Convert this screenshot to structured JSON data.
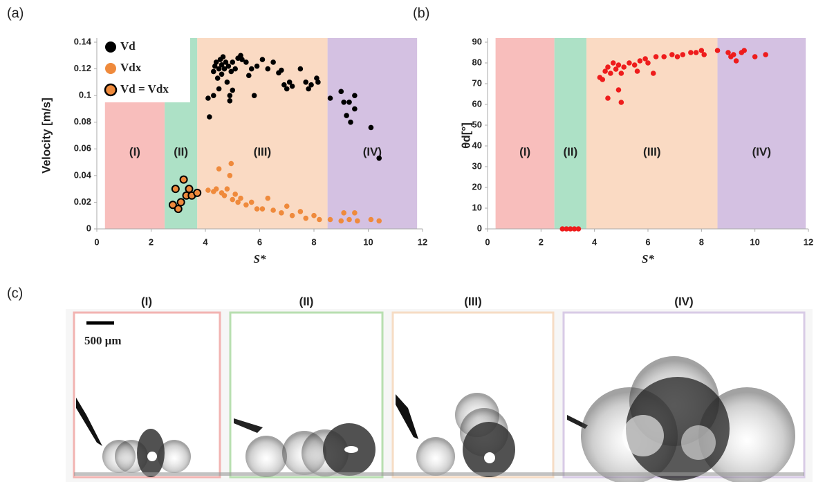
{
  "chart_data": [
    {
      "type": "scatter",
      "panel_label": "(a)",
      "xlabel": "S*",
      "ylabel": "Velocity [m/s]",
      "xlim": [
        0,
        12
      ],
      "xticks": [
        0,
        2,
        4,
        6,
        8,
        10,
        12
      ],
      "ylim": [
        0,
        0.14
      ],
      "yticks": [
        0,
        0.02,
        0.04,
        0.06,
        0.08,
        0.1,
        0.12,
        0.14
      ],
      "legend": "upper left",
      "regions": [
        {
          "label": "(I)",
          "x": [
            0.3,
            2.5
          ],
          "color": "#f7b3b0"
        },
        {
          "label": "(II)",
          "x": [
            2.5,
            3.7
          ],
          "color": "#9fdcbc"
        },
        {
          "label": "(III)",
          "x": [
            3.7,
            8.5
          ],
          "color": "#f9d3b8"
        },
        {
          "label": "(IV)",
          "x": [
            8.5,
            11.8
          ],
          "color": "#cdb6dd"
        }
      ],
      "series": [
        {
          "name": "Vd",
          "color": "#000000",
          "x": [
            4.1,
            4.15,
            4.3,
            4.3,
            4.35,
            4.4,
            4.45,
            4.5,
            4.5,
            4.55,
            4.6,
            4.6,
            4.65,
            4.7,
            4.75,
            4.8,
            4.85,
            4.9,
            4.9,
            4.95,
            5.0,
            5.0,
            5.1,
            5.2,
            5.3,
            5.35,
            5.5,
            5.6,
            5.7,
            5.8,
            5.9,
            6.1,
            6.3,
            6.5,
            6.7,
            6.8,
            6.9,
            7.0,
            7.1,
            7.2,
            7.5,
            7.7,
            7.8,
            7.9,
            8.1,
            8.15,
            8.6,
            9.0,
            9.1,
            9.2,
            9.3,
            9.35,
            9.5,
            9.5,
            10.1,
            10.4
          ],
          "values": [
            0.098,
            0.084,
            0.1,
            0.118,
            0.122,
            0.125,
            0.113,
            0.12,
            0.105,
            0.127,
            0.123,
            0.116,
            0.129,
            0.12,
            0.125,
            0.11,
            0.122,
            0.096,
            0.1,
            0.118,
            0.125,
            0.104,
            0.12,
            0.128,
            0.13,
            0.127,
            0.125,
            0.115,
            0.12,
            0.1,
            0.122,
            0.127,
            0.12,
            0.125,
            0.117,
            0.119,
            0.108,
            0.105,
            0.11,
            0.107,
            0.12,
            0.11,
            0.105,
            0.108,
            0.113,
            0.11,
            0.098,
            0.103,
            0.095,
            0.085,
            0.095,
            0.08,
            0.1,
            0.09,
            0.076,
            0.053
          ]
        },
        {
          "name": "Vdx",
          "color": "#ef8a3c",
          "x": [
            4.1,
            4.3,
            4.4,
            4.5,
            4.6,
            4.7,
            4.8,
            4.9,
            4.95,
            5.0,
            5.1,
            5.2,
            5.3,
            5.5,
            5.7,
            5.9,
            6.1,
            6.3,
            6.5,
            6.8,
            7.0,
            7.2,
            7.5,
            7.7,
            8.0,
            8.2,
            8.6,
            9.0,
            9.1,
            9.3,
            9.5,
            9.6,
            10.1,
            10.4
          ],
          "values": [
            0.029,
            0.028,
            0.03,
            0.045,
            0.027,
            0.025,
            0.03,
            0.04,
            0.049,
            0.022,
            0.026,
            0.02,
            0.023,
            0.018,
            0.02,
            0.015,
            0.015,
            0.023,
            0.014,
            0.012,
            0.017,
            0.01,
            0.013,
            0.008,
            0.01,
            0.007,
            0.007,
            0.006,
            0.012,
            0.007,
            0.012,
            0.006,
            0.007,
            0.006
          ]
        },
        {
          "name": "Vd = Vdx",
          "color": "#ef8a3c",
          "edgecolor": "#000000",
          "x": [
            2.8,
            2.9,
            3.0,
            3.1,
            3.2,
            3.3,
            3.4,
            3.5,
            3.7
          ],
          "values": [
            0.018,
            0.03,
            0.015,
            0.02,
            0.037,
            0.025,
            0.03,
            0.025,
            0.027
          ]
        }
      ]
    },
    {
      "type": "scatter",
      "panel_label": "(b)",
      "xlabel": "S*",
      "ylabel": "θd[°]",
      "xlim": [
        0,
        12
      ],
      "xticks": [
        0,
        2,
        4,
        6,
        8,
        10,
        12
      ],
      "ylim": [
        0,
        90
      ],
      "yticks": [
        0,
        10,
        20,
        30,
        40,
        50,
        60,
        70,
        80,
        90
      ],
      "regions": [
        {
          "label": "(I)",
          "x": [
            0.3,
            2.5
          ],
          "color": "#f7b3b0"
        },
        {
          "label": "(II)",
          "x": [
            2.5,
            3.7
          ],
          "color": "#9fdcbc"
        },
        {
          "label": "(III)",
          "x": [
            3.7,
            8.6
          ],
          "color": "#f9d3b8"
        },
        {
          "label": "(IV)",
          "x": [
            8.6,
            11.9
          ],
          "color": "#cdb6dd"
        }
      ],
      "series": [
        {
          "color": "#ee1c1c",
          "x": [
            4.2,
            4.3,
            4.4,
            4.5,
            4.5,
            4.6,
            4.7,
            4.8,
            4.9,
            4.9,
            5.0,
            5.0,
            5.1,
            5.3,
            5.5,
            5.6,
            5.7,
            5.9,
            6.0,
            6.2,
            6.3,
            6.6,
            6.9,
            7.1,
            7.3,
            7.6,
            7.8,
            8.0,
            8.1,
            8.6,
            9.0,
            9.1,
            9.2,
            9.3,
            9.5,
            9.6,
            10.0,
            10.4,
            2.8,
            2.95,
            3.1,
            3.25,
            3.4
          ],
          "values": [
            73,
            72,
            76,
            63,
            78,
            75,
            80,
            77,
            79,
            67,
            61,
            75,
            78,
            80,
            79,
            76,
            81,
            82,
            80,
            75,
            83,
            83,
            84,
            83,
            84,
            85,
            85,
            86,
            84,
            86,
            85,
            83,
            84,
            81,
            85,
            86,
            83,
            84,
            0,
            0,
            0,
            0,
            0
          ]
        }
      ]
    }
  ],
  "figure_c": {
    "label": "(c)",
    "panels": [
      "(I)",
      "(II)",
      "(III)",
      "(IV)"
    ],
    "scale_bar": "500 μm"
  }
}
